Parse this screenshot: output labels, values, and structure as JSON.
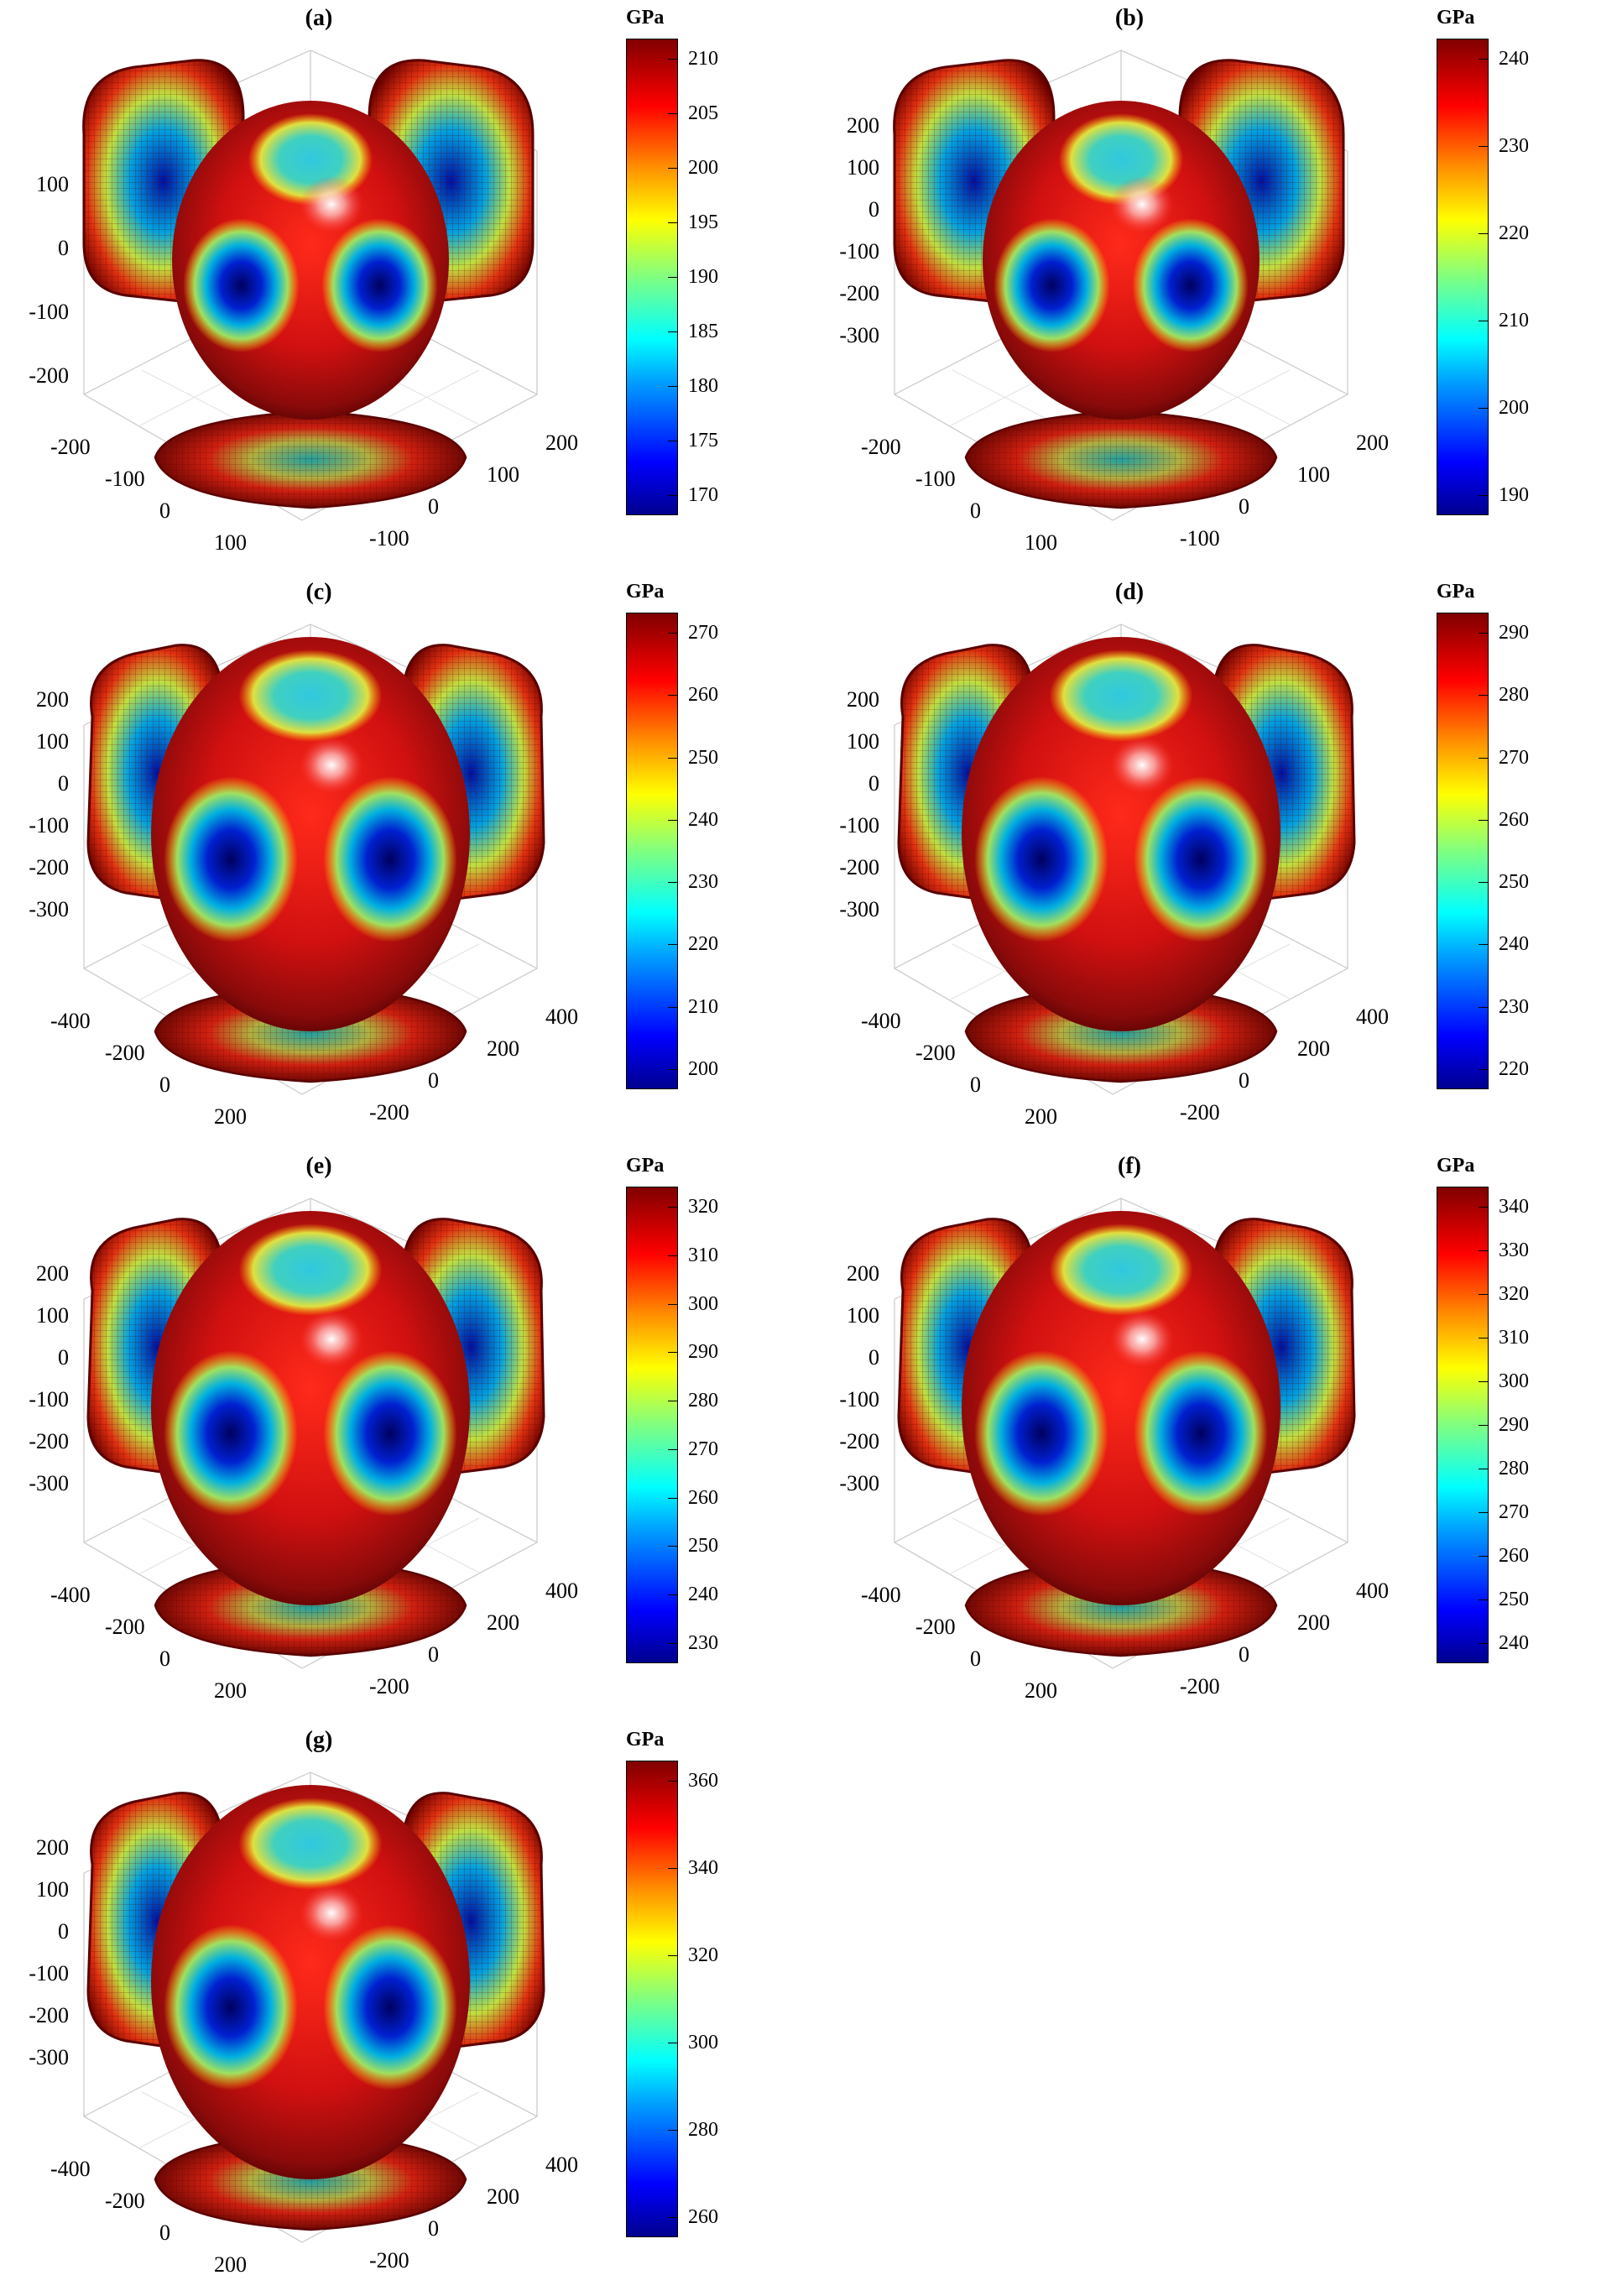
{
  "unit": "GPa",
  "panels": [
    {
      "label": "(a)",
      "colorbar_ticks": [
        "170",
        "175",
        "180",
        "185",
        "190",
        "195",
        "200",
        "205",
        "210"
      ],
      "vertical_ticks": [
        "100",
        "0",
        "-100",
        "-200"
      ],
      "left_axis_ticks": [
        "-200",
        "-100",
        "0",
        "100"
      ],
      "right_axis_ticks": [
        "200",
        "100",
        "0",
        "-100"
      ]
    },
    {
      "label": "(b)",
      "colorbar_ticks": [
        "190",
        "200",
        "210",
        "220",
        "230",
        "240"
      ],
      "vertical_ticks": [
        "200",
        "100",
        "0",
        "-100",
        "-200",
        "-300"
      ],
      "left_axis_ticks": [
        "-200",
        "-100",
        "0",
        "100"
      ],
      "right_axis_ticks": [
        "200",
        "100",
        "0",
        "-100"
      ]
    },
    {
      "label": "(c)",
      "colorbar_ticks": [
        "200",
        "210",
        "220",
        "230",
        "240",
        "250",
        "260",
        "270"
      ],
      "vertical_ticks": [
        "200",
        "100",
        "0",
        "-100",
        "-200",
        "-300"
      ],
      "left_axis_ticks": [
        "-400",
        "-200",
        "0",
        "200"
      ],
      "right_axis_ticks": [
        "400",
        "200",
        "0",
        "-200"
      ]
    },
    {
      "label": "(d)",
      "colorbar_ticks": [
        "220",
        "230",
        "240",
        "250",
        "260",
        "270",
        "280",
        "290"
      ],
      "vertical_ticks": [
        "200",
        "100",
        "0",
        "-100",
        "-200",
        "-300"
      ],
      "left_axis_ticks": [
        "-400",
        "-200",
        "0",
        "200"
      ],
      "right_axis_ticks": [
        "400",
        "200",
        "0",
        "-200"
      ]
    },
    {
      "label": "(e)",
      "colorbar_ticks": [
        "230",
        "240",
        "250",
        "260",
        "270",
        "280",
        "290",
        "300",
        "310",
        "320"
      ],
      "vertical_ticks": [
        "200",
        "100",
        "0",
        "-100",
        "-200",
        "-300"
      ],
      "left_axis_ticks": [
        "-400",
        "-200",
        "0",
        "200"
      ],
      "right_axis_ticks": [
        "400",
        "200",
        "0",
        "-200"
      ]
    },
    {
      "label": "(f)",
      "colorbar_ticks": [
        "240",
        "250",
        "260",
        "270",
        "280",
        "290",
        "300",
        "310",
        "320",
        "330",
        "340"
      ],
      "vertical_ticks": [
        "200",
        "100",
        "0",
        "-100",
        "-200",
        "-300"
      ],
      "left_axis_ticks": [
        "-400",
        "-200",
        "0",
        "200"
      ],
      "right_axis_ticks": [
        "400",
        "200",
        "0",
        "-200"
      ]
    },
    {
      "label": "(g)",
      "colorbar_ticks": [
        "260",
        "280",
        "300",
        "320",
        "340",
        "360"
      ],
      "vertical_ticks": [
        "200",
        "100",
        "0",
        "-100",
        "-200",
        "-300"
      ],
      "left_axis_ticks": [
        "-400",
        "-200",
        "0",
        "200"
      ],
      "right_axis_ticks": [
        "400",
        "200",
        "0",
        "-200"
      ]
    }
  ]
}
